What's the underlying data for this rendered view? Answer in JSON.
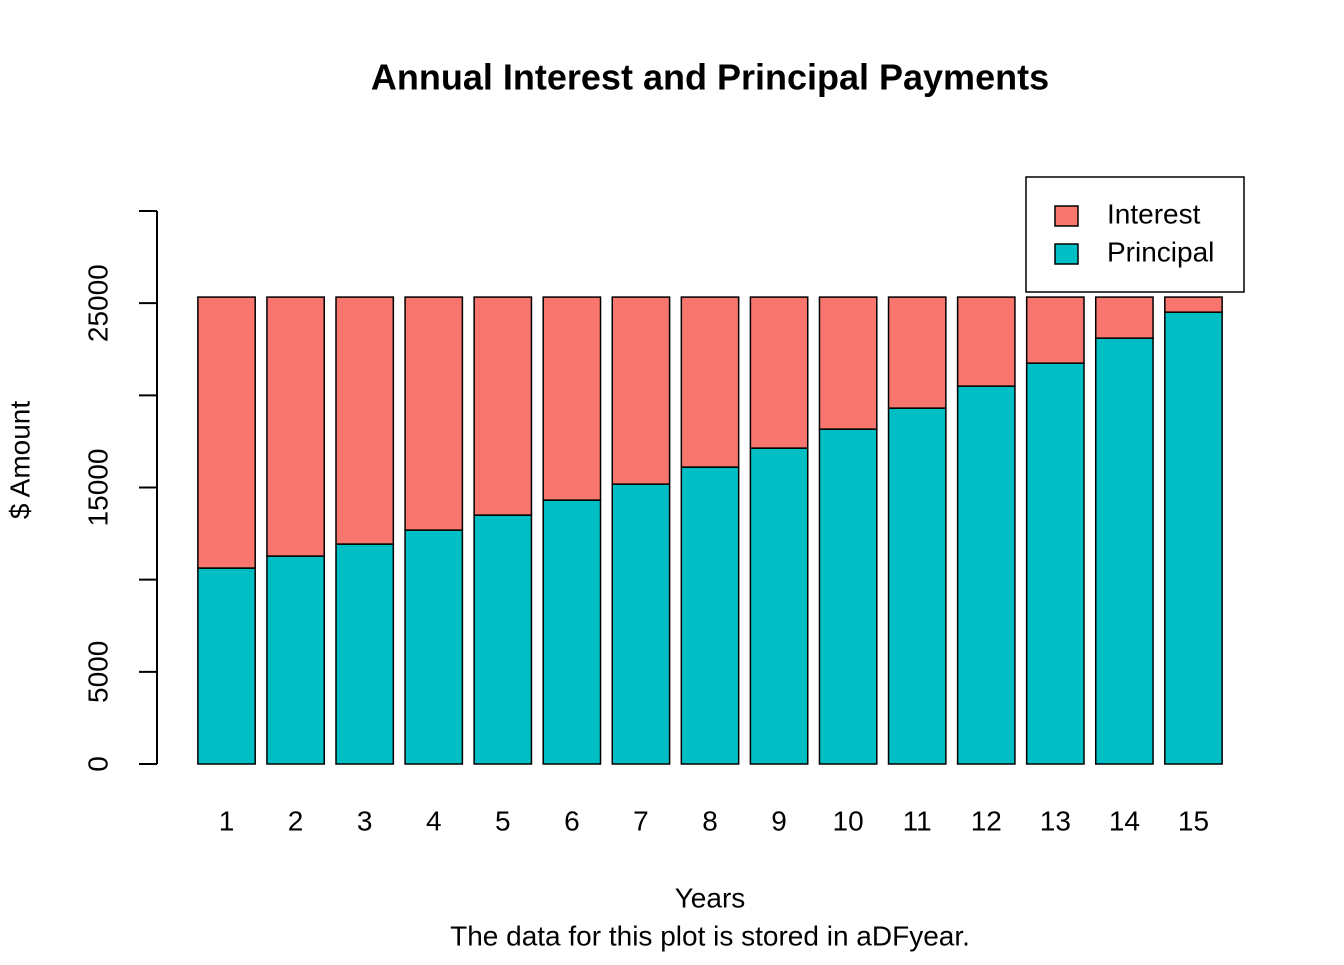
{
  "chart_data": {
    "type": "stacked_bar",
    "title": "Annual Interest and Principal Payments",
    "x_label": "Years",
    "y_label": "$ Amount",
    "subtitle": "The data for this plot is stored in aDFyear.",
    "categories": [
      "1",
      "2",
      "3",
      "4",
      "5",
      "6",
      "7",
      "8",
      "9",
      "10",
      "11",
      "12",
      "13",
      "14",
      "15"
    ],
    "series": [
      {
        "name": "Interest",
        "color": "#F8766D",
        "values": [
          14701,
          14050,
          13399,
          12640,
          11827,
          11013,
          10146,
          9224,
          8193,
          7163,
          6024,
          4831,
          3584,
          2228,
          818
        ]
      },
      {
        "name": "Principal",
        "color": "#00BFC4",
        "values": [
          10629,
          11280,
          11931,
          12690,
          13503,
          14317,
          15184,
          16106,
          17137,
          18167,
          19306,
          20499,
          21746,
          23102,
          24512
        ]
      }
    ],
    "ylim": [
      0,
      30000
    ],
    "yticks": [
      0,
      5000,
      15000,
      25000
    ],
    "yticks_unlabeled": [
      10000,
      20000,
      30000
    ],
    "legend": "top-right"
  }
}
